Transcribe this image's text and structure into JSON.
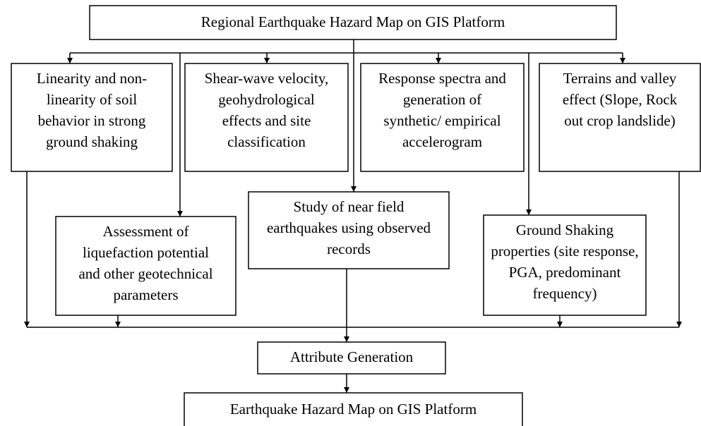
{
  "top": {
    "lines": [
      "Regional Earthquake Hazard Map on GIS Platform"
    ]
  },
  "nodes": [
    {
      "lines": [
        "Linearity and non-",
        "linearity of soil",
        "behavior in strong",
        "ground shaking"
      ]
    },
    {
      "lines": [
        "Shear-wave velocity,",
        "geohydrological",
        "effects and site",
        "classification"
      ]
    },
    {
      "lines": [
        "Response spectra and",
        "generation of",
        "synthetic/ empirical",
        "accelerogram"
      ]
    },
    {
      "lines": [
        "Terrains and valley",
        "effect (Slope, Rock",
        "out crop landslide)"
      ]
    },
    {
      "lines": [
        "Assessment of",
        "liquefaction potential",
        "and other geotechnical",
        "parameters"
      ]
    },
    {
      "lines": [
        "Study of near field",
        "earthquakes using observed",
        "records"
      ]
    },
    {
      "lines": [
        "Ground Shaking",
        "properties (site response,",
        "PGA, predominant",
        "frequency)"
      ]
    },
    {
      "lines": [
        "Attribute Generation"
      ]
    }
  ],
  "bottom": {
    "lines": [
      "Earthquake Hazard Map on GIS Platform"
    ]
  }
}
